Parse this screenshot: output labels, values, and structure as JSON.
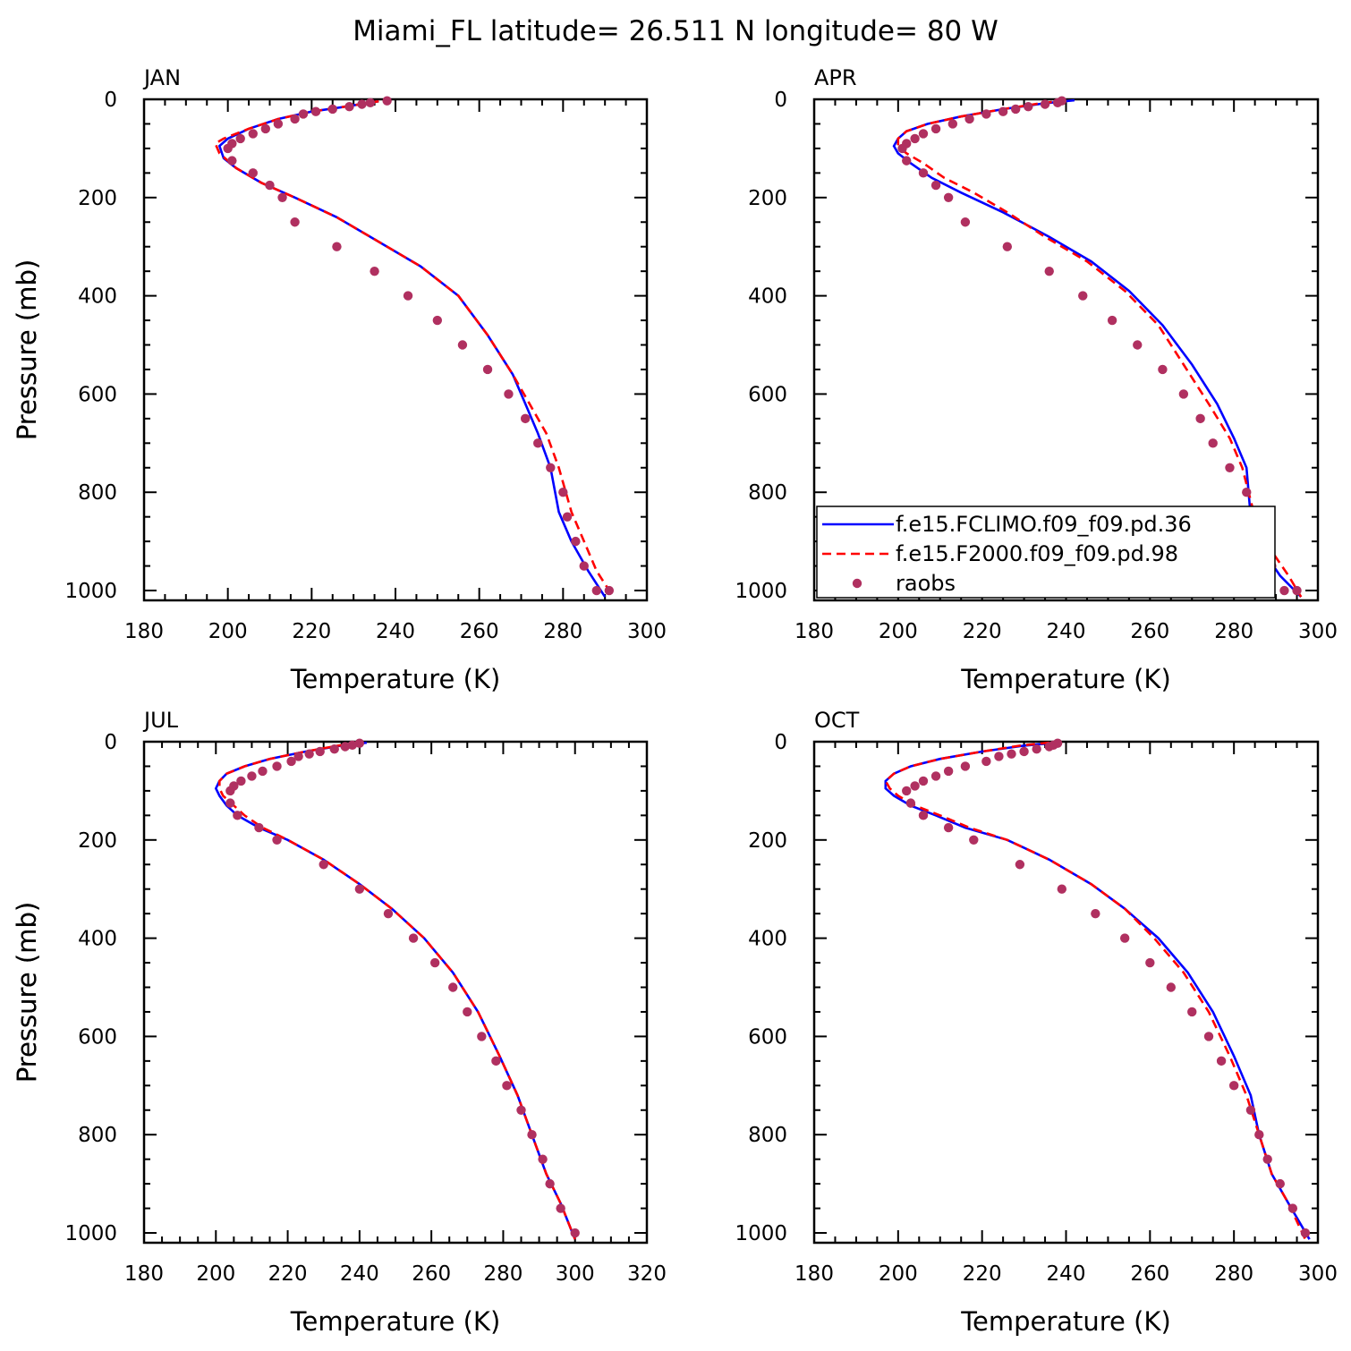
{
  "figure_title": "Miami_FL  latitude= 26.511 N longitude= 80 W",
  "colors": {
    "model1": "#0000ff",
    "model2": "#ff0000",
    "raobs": "#b03060"
  },
  "legend": {
    "entries": [
      {
        "label": "f.e15.FCLIMO.f09_f09.pd.36",
        "style": "solid",
        "color": "#0000ff"
      },
      {
        "label": "f.e15.F2000.f09_f09.pd.98",
        "style": "dashed",
        "color": "#ff0000"
      },
      {
        "label": "raobs",
        "style": "marker",
        "color": "#b03060"
      }
    ]
  },
  "chart_data": [
    {
      "type": "line",
      "title": "JAN",
      "xlabel": "Temperature (K)",
      "ylabel": "Pressure (mb)",
      "xlim": [
        180,
        300
      ],
      "ylim": [
        1020,
        0
      ],
      "xticks": [
        180,
        200,
        220,
        240,
        260,
        280,
        300
      ],
      "yticks": [
        0,
        200,
        400,
        600,
        800,
        1000
      ],
      "series": [
        {
          "name": "f.e15.FCLIMO.f09_f09.pd.36",
          "t": [
            236,
            228,
            220,
            212,
            205,
            200,
            198,
            199,
            202,
            208,
            216,
            226,
            236,
            246,
            255,
            262,
            268,
            271,
            274,
            277,
            279,
            282,
            286,
            290
          ],
          "p": [
            4,
            15,
            25,
            40,
            60,
            80,
            95,
            120,
            140,
            170,
            200,
            240,
            290,
            340,
            400,
            480,
            560,
            620,
            680,
            750,
            840,
            900,
            960,
            1013
          ]
        },
        {
          "name": "f.e15.F2000.f09_f09.pd.98",
          "t": [
            236,
            228,
            220,
            212,
            205,
            199,
            197,
            198,
            202,
            208,
            216,
            226,
            236,
            246,
            255,
            262,
            268,
            272,
            276,
            279,
            282,
            285,
            288,
            292
          ],
          "p": [
            4,
            15,
            25,
            40,
            60,
            80,
            90,
            110,
            140,
            170,
            200,
            240,
            290,
            340,
            400,
            480,
            560,
            620,
            680,
            750,
            840,
            900,
            960,
            1013
          ]
        },
        {
          "name": "raobs",
          "t": [
            238,
            234,
            232,
            229,
            225,
            221,
            218,
            216,
            212,
            209,
            206,
            203,
            201,
            200,
            201,
            206,
            210,
            213,
            216,
            226,
            235,
            243,
            250,
            256,
            262,
            267,
            271,
            274,
            277,
            280,
            281,
            283,
            285,
            288,
            291
          ],
          "p": [
            3,
            7,
            10,
            15,
            20,
            25,
            30,
            40,
            50,
            60,
            70,
            80,
            90,
            100,
            125,
            150,
            175,
            200,
            250,
            300,
            350,
            400,
            450,
            500,
            550,
            600,
            650,
            700,
            750,
            800,
            850,
            900,
            950,
            1000,
            1000
          ]
        }
      ]
    },
    {
      "type": "line",
      "title": "APR",
      "xlabel": "Temperature (K)",
      "ylabel": "Pressure (mb)",
      "xlim": [
        180,
        300
      ],
      "ylim": [
        1020,
        0
      ],
      "xticks": [
        180,
        200,
        220,
        240,
        260,
        280,
        300
      ],
      "yticks": [
        0,
        200,
        400,
        600,
        800,
        1000
      ],
      "series": [
        {
          "name": "f.e15.FCLIMO.f09_f09.pd.36",
          "t": [
            242,
            235,
            225,
            215,
            207,
            202,
            200,
            199,
            200,
            203,
            208,
            215,
            225,
            236,
            246,
            255,
            263,
            270,
            276,
            280,
            283,
            284,
            287,
            291,
            296
          ],
          "p": [
            2,
            8,
            20,
            35,
            50,
            65,
            80,
            95,
            110,
            130,
            160,
            190,
            230,
            280,
            330,
            390,
            460,
            540,
            620,
            690,
            750,
            850,
            920,
            970,
            1013
          ]
        },
        {
          "name": "f.e15.F2000.f09_f09.pd.98",
          "t": [
            240,
            234,
            225,
            215,
            207,
            202,
            200,
            200,
            202,
            206,
            211,
            218,
            226,
            235,
            245,
            254,
            262,
            268,
            274,
            279,
            282,
            285,
            289,
            293,
            296
          ],
          "p": [
            2,
            8,
            20,
            35,
            50,
            65,
            80,
            95,
            110,
            130,
            160,
            190,
            230,
            280,
            330,
            390,
            460,
            540,
            620,
            690,
            750,
            850,
            920,
            970,
            1013
          ]
        },
        {
          "name": "raobs",
          "t": [
            239,
            238,
            235,
            231,
            228,
            225,
            221,
            217,
            213,
            209,
            206,
            204,
            202,
            201,
            202,
            206,
            209,
            212,
            216,
            226,
            236,
            244,
            251,
            257,
            263,
            268,
            272,
            275,
            279,
            283,
            285,
            286,
            289,
            292,
            295
          ],
          "p": [
            3,
            7,
            10,
            15,
            20,
            25,
            30,
            40,
            50,
            60,
            70,
            80,
            90,
            100,
            125,
            150,
            175,
            200,
            250,
            300,
            350,
            400,
            450,
            500,
            550,
            600,
            650,
            700,
            750,
            800,
            850,
            900,
            950,
            1000,
            1000
          ]
        }
      ]
    },
    {
      "type": "line",
      "title": "JUL",
      "xlabel": "Temperature (K)",
      "ylabel": "Pressure (mb)",
      "xlim": [
        180,
        320
      ],
      "ylim": [
        1020,
        0
      ],
      "xticks": [
        180,
        200,
        220,
        240,
        260,
        280,
        300,
        320
      ],
      "yticks": [
        0,
        200,
        400,
        600,
        800,
        1000
      ],
      "series": [
        {
          "name": "f.e15.FCLIMO.f09_f09.pd.36",
          "t": [
            242,
            235,
            225,
            215,
            208,
            203,
            201,
            200,
            201,
            203,
            206,
            212,
            220,
            230,
            240,
            249,
            258,
            266,
            273,
            279,
            284,
            288,
            292,
            296,
            300
          ],
          "p": [
            2,
            8,
            20,
            35,
            50,
            65,
            80,
            95,
            110,
            130,
            150,
            175,
            200,
            240,
            290,
            340,
            400,
            470,
            550,
            640,
            720,
            800,
            880,
            940,
            1013
          ]
        },
        {
          "name": "f.e15.F2000.f09_f09.pd.98",
          "t": [
            240,
            234,
            225,
            215,
            208,
            203,
            201,
            201,
            202,
            205,
            208,
            213,
            220,
            230,
            240,
            249,
            258,
            266,
            273,
            279,
            284,
            288,
            292,
            296,
            300
          ],
          "p": [
            2,
            8,
            20,
            35,
            50,
            65,
            80,
            95,
            110,
            130,
            150,
            175,
            200,
            240,
            290,
            340,
            400,
            470,
            550,
            640,
            720,
            800,
            880,
            940,
            1013
          ]
        },
        {
          "name": "raobs",
          "t": [
            240,
            238,
            236,
            233,
            229,
            226,
            223,
            221,
            217,
            213,
            210,
            207,
            205,
            204,
            204,
            206,
            212,
            217,
            230,
            240,
            248,
            255,
            261,
            266,
            270,
            274,
            278,
            281,
            285,
            288,
            291,
            293,
            296,
            300
          ],
          "p": [
            3,
            7,
            10,
            15,
            20,
            25,
            30,
            40,
            50,
            60,
            70,
            80,
            90,
            100,
            125,
            150,
            175,
            200,
            250,
            300,
            350,
            400,
            450,
            500,
            550,
            600,
            650,
            700,
            750,
            800,
            850,
            900,
            950,
            1000
          ]
        }
      ]
    },
    {
      "type": "line",
      "title": "OCT",
      "xlabel": "Temperature (K)",
      "ylabel": "Pressure (mb)",
      "xlim": [
        180,
        300
      ],
      "ylim": [
        1020,
        0
      ],
      "xticks": [
        180,
        200,
        220,
        240,
        260,
        280,
        300
      ],
      "yticks": [
        0,
        200,
        400,
        600,
        800,
        1000
      ],
      "series": [
        {
          "name": "f.e15.FCLIMO.f09_f09.pd.36",
          "t": [
            238,
            230,
            220,
            210,
            203,
            199,
            197,
            197,
            199,
            203,
            209,
            216,
            226,
            236,
            246,
            254,
            262,
            269,
            275,
            280,
            284,
            286,
            289,
            293,
            298
          ],
          "p": [
            2,
            8,
            20,
            35,
            50,
            65,
            80,
            95,
            110,
            130,
            150,
            175,
            200,
            240,
            290,
            340,
            400,
            470,
            550,
            640,
            720,
            800,
            880,
            940,
            1013
          ]
        },
        {
          "name": "f.e15.F2000.f09_f09.pd.98",
          "t": [
            236,
            229,
            220,
            210,
            203,
            199,
            197,
            198,
            200,
            204,
            210,
            217,
            226,
            236,
            246,
            254,
            261,
            268,
            274,
            279,
            283,
            286,
            289,
            293,
            297
          ],
          "p": [
            2,
            8,
            20,
            35,
            50,
            65,
            80,
            95,
            110,
            130,
            150,
            175,
            200,
            240,
            290,
            340,
            400,
            470,
            550,
            640,
            720,
            800,
            880,
            940,
            1013
          ]
        },
        {
          "name": "raobs",
          "t": [
            238,
            237,
            236,
            233,
            230,
            227,
            224,
            221,
            216,
            212,
            209,
            206,
            204,
            202,
            203,
            206,
            212,
            218,
            229,
            239,
            247,
            254,
            260,
            265,
            270,
            274,
            277,
            280,
            284,
            286,
            288,
            291,
            294,
            297
          ],
          "p": [
            3,
            7,
            10,
            15,
            20,
            25,
            30,
            40,
            50,
            60,
            70,
            80,
            90,
            100,
            125,
            150,
            175,
            200,
            250,
            300,
            350,
            400,
            450,
            500,
            550,
            600,
            650,
            700,
            750,
            800,
            850,
            900,
            950,
            1000
          ]
        }
      ]
    }
  ]
}
